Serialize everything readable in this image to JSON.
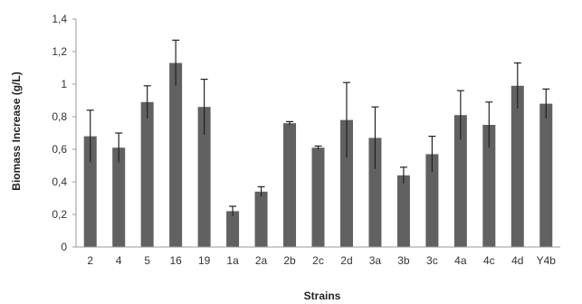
{
  "chart_data": {
    "type": "bar",
    "title": "",
    "xlabel": "Strains",
    "ylabel": "Biomass Increase (g/L)",
    "ylim": [
      0,
      1.4
    ],
    "y_ticks": [
      0,
      0.2,
      0.4,
      0.6,
      0.8,
      1,
      1.2,
      1.4
    ],
    "y_tick_labels": [
      "0",
      "0,2",
      "0,4",
      "0,6",
      "0,8",
      "1",
      "1,2",
      "1,4"
    ],
    "categories": [
      "2",
      "4",
      "5",
      "16",
      "19",
      "1a",
      "2a",
      "2b",
      "2c",
      "2d",
      "3a",
      "3b",
      "3c",
      "4a",
      "4c",
      "4d",
      "Y4b"
    ],
    "values": [
      0.68,
      0.61,
      0.89,
      1.13,
      0.86,
      0.22,
      0.34,
      0.76,
      0.61,
      0.78,
      0.67,
      0.44,
      0.57,
      0.81,
      0.75,
      0.99,
      0.88
    ],
    "error": [
      0.16,
      0.09,
      0.1,
      0.14,
      0.17,
      0.03,
      0.03,
      0.01,
      0.01,
      0.23,
      0.19,
      0.05,
      0.11,
      0.15,
      0.14,
      0.14,
      0.09
    ],
    "grid": false,
    "legend": "none",
    "colors": {
      "bar": "#616161",
      "error_bar": "#222222",
      "axis": "#9a9a9a"
    }
  }
}
